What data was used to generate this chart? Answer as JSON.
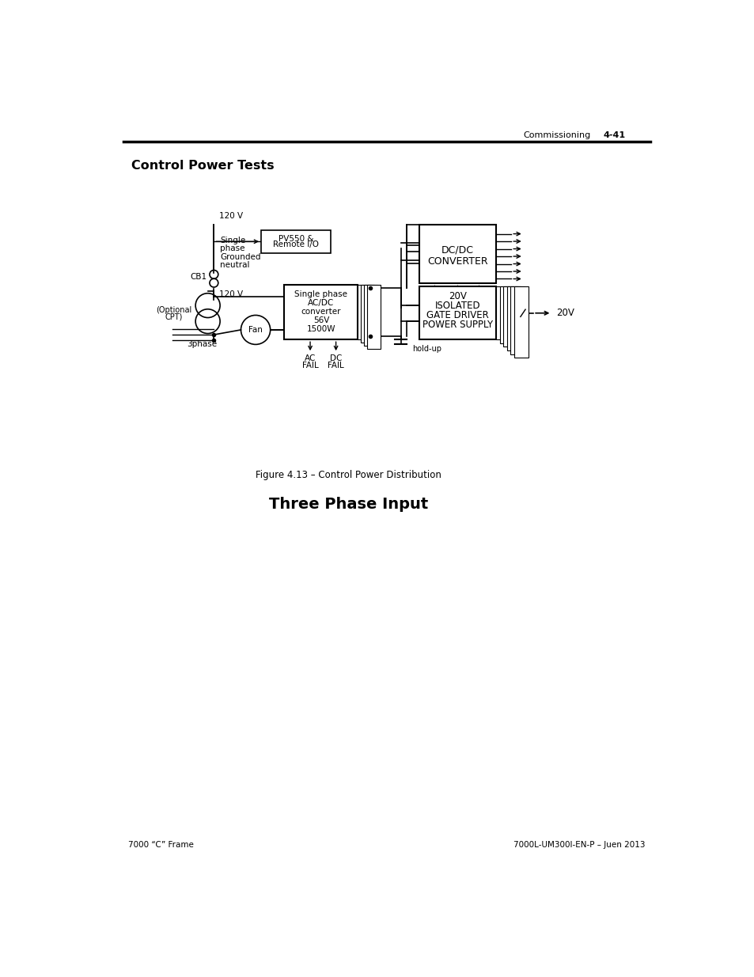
{
  "page_title": "Control Power Tests",
  "section_title": "Three Phase Input",
  "header_text": "Commissioning",
  "header_page": "4-41",
  "footer_left": "7000 “C” Frame",
  "footer_right": "7000L-UM300I-EN-P – Juen 2013",
  "figure_caption": "Figure 4.13 – Control Power Distribution",
  "bg_color": "#ffffff",
  "text_color": "#000000",
  "line_color": "#000000"
}
